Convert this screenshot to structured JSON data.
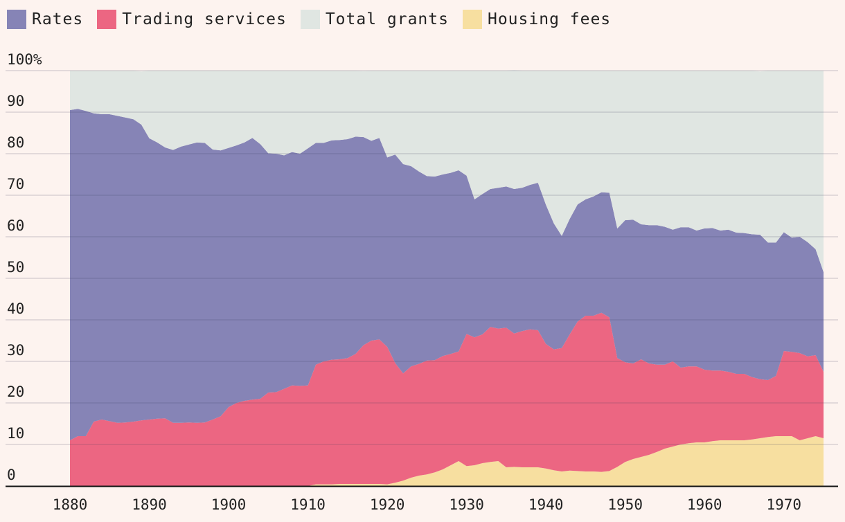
{
  "chart_data": {
    "type": "area",
    "stacked": true,
    "ylabel": "",
    "xlabel": "",
    "ylim": [
      0,
      100
    ],
    "y_ticks": [
      "0",
      "10",
      "20",
      "30",
      "40",
      "50",
      "60",
      "70",
      "80",
      "90",
      "100%"
    ],
    "x_ticks": [
      "1880",
      "1890",
      "1900",
      "1910",
      "1920",
      "1930",
      "1940",
      "1950",
      "1960",
      "1970"
    ],
    "x": [
      1880,
      1881,
      1882,
      1883,
      1884,
      1885,
      1886,
      1887,
      1888,
      1889,
      1890,
      1891,
      1892,
      1893,
      1894,
      1895,
      1896,
      1897,
      1898,
      1899,
      1900,
      1901,
      1902,
      1903,
      1904,
      1905,
      1906,
      1907,
      1908,
      1909,
      1910,
      1911,
      1912,
      1913,
      1914,
      1915,
      1916,
      1917,
      1918,
      1919,
      1920,
      1921,
      1922,
      1923,
      1924,
      1925,
      1926,
      1927,
      1928,
      1929,
      1930,
      1931,
      1932,
      1933,
      1934,
      1935,
      1936,
      1937,
      1938,
      1939,
      1940,
      1941,
      1942,
      1943,
      1944,
      1945,
      1946,
      1947,
      1948,
      1949,
      1950,
      1951,
      1952,
      1953,
      1954,
      1955,
      1956,
      1957,
      1958,
      1959,
      1960,
      1961,
      1962,
      1963,
      1964,
      1965,
      1966,
      1967,
      1968,
      1969,
      1970,
      1971,
      1972,
      1973,
      1974,
      1975
    ],
    "legend_order": [
      "Rates",
      "Trading services",
      "Total grants",
      "Housing fees"
    ],
    "series": [
      {
        "name": "Housing fees",
        "color": "#f7dfa0",
        "values": [
          0,
          0,
          0,
          0,
          0,
          0,
          0,
          0,
          0,
          0,
          0,
          0,
          0,
          0,
          0,
          0,
          0,
          0,
          0,
          0,
          0,
          0,
          0,
          0,
          0,
          0,
          0,
          0,
          0,
          0,
          0,
          0.4,
          0.4,
          0.4,
          0.5,
          0.5,
          0.5,
          0.5,
          0.5,
          0.5,
          0.4,
          0.8,
          1.3,
          2,
          2.5,
          2.8,
          3.3,
          4,
          5,
          6,
          4.8,
          5,
          5.5,
          5.8,
          6,
          4.5,
          4.6,
          4.5,
          4.5,
          4.5,
          4.2,
          3.8,
          3.5,
          3.7,
          3.6,
          3.5,
          3.5,
          3.4,
          3.6,
          4.6,
          5.8,
          6.5,
          7,
          7.5,
          8.2,
          9,
          9.5,
          10,
          10.3,
          10.5,
          10.5,
          10.8,
          11,
          11,
          11,
          11,
          11.2,
          11.5,
          11.8,
          12,
          12,
          12,
          11,
          11.5,
          12,
          11.5
        ]
      },
      {
        "name": "Trading services",
        "color": "#ec6682",
        "values": [
          11,
          12,
          12,
          15.5,
          16,
          15.6,
          15.2,
          15.3,
          15.5,
          15.8,
          16,
          16.2,
          16.3,
          15.2,
          15.2,
          15.3,
          15.2,
          15.3,
          16,
          16.8,
          19,
          20,
          20.5,
          20.8,
          21,
          22.5,
          22.6,
          23.4,
          24.2,
          24.1,
          24.2,
          28.8,
          29.6,
          30,
          30,
          30.3,
          31.3,
          33.4,
          34.5,
          34.8,
          33.1,
          28.8,
          25.8,
          26.8,
          26.9,
          27.4,
          27,
          27.3,
          26.8,
          26.4,
          31.8,
          30.8,
          31,
          32.5,
          31.9,
          33.6,
          32.1,
          32.8,
          33.2,
          33,
          30,
          29.1,
          29.7,
          32.8,
          36,
          37.5,
          37.5,
          38.3,
          37,
          26.2,
          24,
          23,
          23.5,
          22,
          21,
          20.2,
          20.5,
          18.5,
          18.5,
          18.3,
          17.5,
          17,
          16.8,
          16.5,
          16,
          16,
          15,
          14.2,
          13.7,
          14.5,
          20.5,
          20.3,
          21,
          19.7,
          19.5,
          16
        ]
      },
      {
        "name": "Rates",
        "color": "#8684b6",
        "values": [
          79.5,
          78.8,
          78.3,
          74.2,
          73.5,
          73.9,
          73.9,
          73.4,
          72.8,
          71.2,
          67.7,
          66.5,
          65.2,
          65.7,
          66.5,
          66.9,
          67.5,
          67.3,
          65,
          64,
          62.4,
          62,
          62.2,
          63,
          61.3,
          57.6,
          57.4,
          56.2,
          56.2,
          55.9,
          57.1,
          53.4,
          52.6,
          52.8,
          52.8,
          52.7,
          52.3,
          50.1,
          48.1,
          48.5,
          45.6,
          50.2,
          50.4,
          48.2,
          46.3,
          44.4,
          44.2,
          43.7,
          43.6,
          43.6,
          38.1,
          33.2,
          33.8,
          33.2,
          33.9,
          34,
          34.8,
          34.5,
          34.8,
          35.5,
          33.5,
          30.3,
          27,
          27.8,
          28.2,
          28,
          28.7,
          29,
          30,
          31.2,
          34.2,
          34.6,
          32.5,
          33.3,
          33.6,
          33.2,
          31.7,
          33.8,
          33.5,
          32.7,
          34,
          34.3,
          33.7,
          34.2,
          34,
          33.9,
          34.4,
          34.8,
          33.1,
          32.1,
          28.6,
          27.5,
          28,
          27.5,
          25.5,
          24
        ]
      },
      {
        "name": "Total grants",
        "color": "#e0e6e2",
        "values": [
          9.5,
          9.2,
          9.7,
          10.3,
          10.5,
          10.5,
          10.9,
          11.3,
          11.7,
          12.8,
          16.3,
          17.3,
          18.5,
          19.1,
          18.3,
          17.8,
          17.3,
          17.4,
          19,
          19.2,
          18.6,
          18,
          17.3,
          16.2,
          17.7,
          19.9,
          20,
          20.4,
          19.6,
          20,
          18.7,
          17.4,
          17.4,
          16.8,
          16.7,
          16.5,
          15.9,
          15.9,
          16.9,
          16.2,
          20.9,
          20.2,
          22.5,
          23,
          24.3,
          25.4,
          25.5,
          25,
          24.6,
          24,
          25.3,
          31,
          29.7,
          28.5,
          28.2,
          27.9,
          28.6,
          28.2,
          27.5,
          27,
          32.3,
          36.8,
          39.8,
          35.7,
          32.2,
          31,
          30.3,
          29.3,
          29.4,
          38,
          36,
          35.9,
          37,
          37.2,
          37.2,
          37.6,
          38.3,
          37.7,
          37.7,
          38.5,
          38,
          37.9,
          38.5,
          38.3,
          39,
          39.1,
          39.4,
          39.3,
          41.4,
          41.4,
          38.9,
          40.2,
          40,
          41.3,
          43,
          48.5
        ]
      }
    ]
  }
}
